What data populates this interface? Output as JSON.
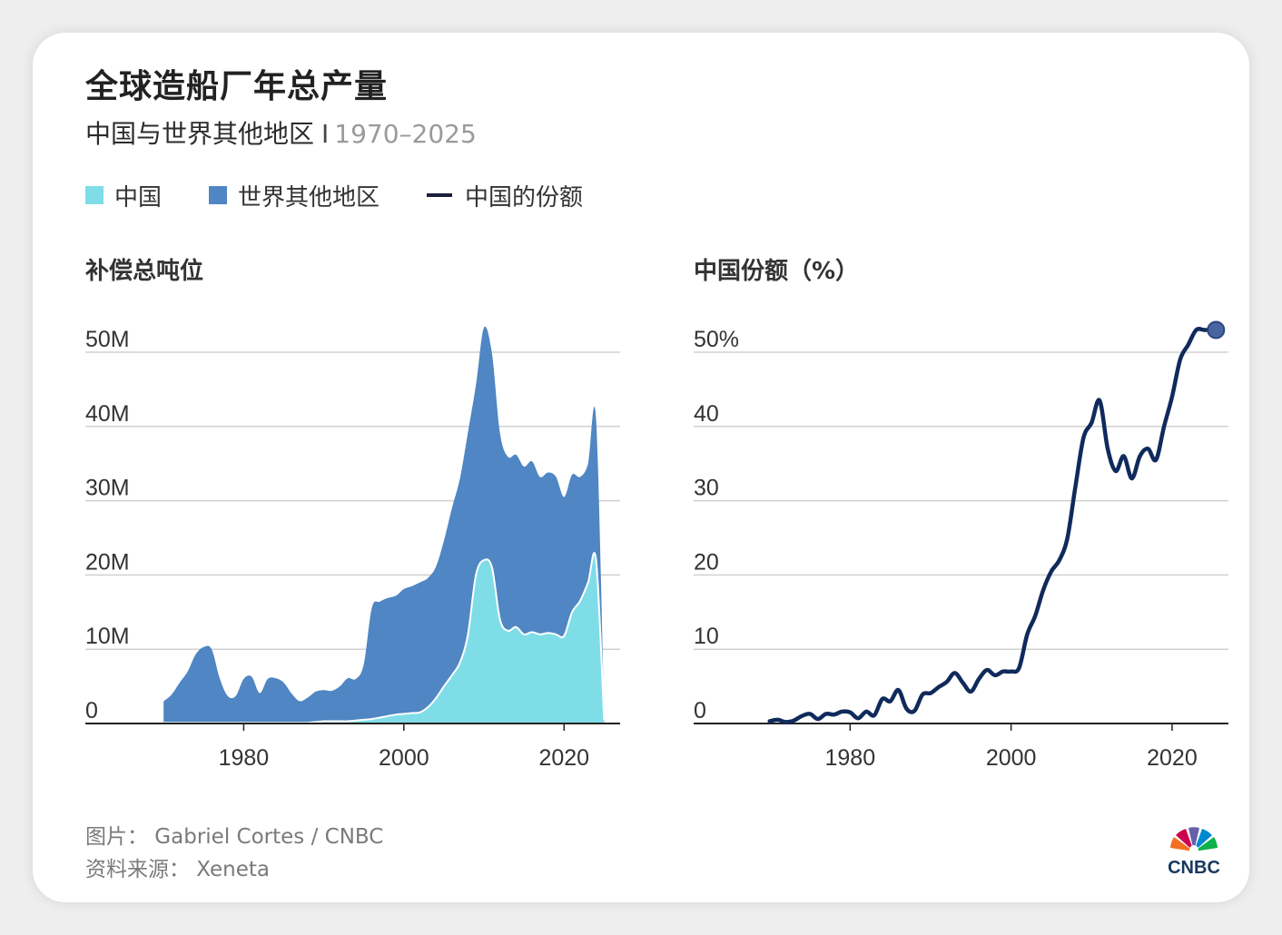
{
  "title": "全球造船厂年总产量",
  "subtitle": "中国与世界其他地区",
  "subtitle_sep": "I",
  "subtitle_range": "1970–2025",
  "legend": [
    {
      "label": "中国",
      "color": "#7fdde8"
    },
    {
      "label": "世界其他地区",
      "color": "#4f86c3"
    },
    {
      "label": "中国的份额",
      "color": "#1a1f3a"
    }
  ],
  "credit": "图片： Gabriel Cortes / CNBC",
  "source": "资料来源： Xeneta",
  "logo_text": "CNBC",
  "chart_data": [
    {
      "type": "area",
      "stacked": true,
      "title": "补偿总吨位",
      "xlim": [
        1960,
        2027
      ],
      "ylim": [
        0,
        50
      ],
      "y_unit": "M",
      "yticks": [
        0,
        10,
        20,
        30,
        40,
        50
      ],
      "ytick_labels": [
        "0",
        "10M",
        "20M",
        "30M",
        "40M",
        "50M"
      ],
      "xticks": [
        1980,
        2000,
        2020
      ],
      "xtick_labels": [
        "1980",
        "2000",
        "2020"
      ],
      "grid": true,
      "x": [
        1970,
        1971,
        1972,
        1973,
        1974,
        1975,
        1976,
        1977,
        1978,
        1979,
        1980,
        1981,
        1982,
        1983,
        1984,
        1985,
        1986,
        1987,
        1988,
        1989,
        1990,
        1991,
        1992,
        1993,
        1994,
        1995,
        1996,
        1997,
        1998,
        1999,
        2000,
        2001,
        2002,
        2003,
        2004,
        2005,
        2006,
        2007,
        2008,
        2009,
        2010,
        2011,
        2012,
        2013,
        2014,
        2015,
        2016,
        2017,
        2018,
        2019,
        2020,
        2021,
        2022,
        2023,
        2024,
        2025
      ],
      "series": [
        {
          "name": "中国",
          "color": "#7fdde8",
          "values": [
            0.1,
            0.1,
            0.1,
            0.1,
            0.1,
            0.1,
            0.1,
            0.1,
            0.1,
            0.1,
            0.1,
            0.1,
            0.1,
            0.1,
            0.1,
            0.1,
            0.1,
            0.1,
            0.1,
            0.2,
            0.3,
            0.3,
            0.3,
            0.3,
            0.4,
            0.5,
            0.6,
            0.8,
            1.0,
            1.2,
            1.3,
            1.4,
            1.5,
            2.2,
            3.4,
            5.0,
            6.5,
            8.2,
            12.0,
            20.0,
            22.0,
            21.0,
            14.0,
            12.5,
            13.0,
            12.0,
            12.3,
            12.0,
            12.2,
            12.0,
            11.8,
            15.0,
            16.5,
            19.0,
            22.0,
            0.5
          ]
        },
        {
          "name": "世界其他地区",
          "color": "#4f86c3",
          "values": [
            2.9,
            3.8,
            5.4,
            6.9,
            9.2,
            10.2,
            9.9,
            6.0,
            3.6,
            3.6,
            5.9,
            6.2,
            4.0,
            5.9,
            6.0,
            5.4,
            3.9,
            2.9,
            3.4,
            4.1,
            4.2,
            4.1,
            4.7,
            5.8,
            5.6,
            7.5,
            15.0,
            15.6,
            15.9,
            16.0,
            16.8,
            17.1,
            17.5,
            17.4,
            17.7,
            19.6,
            22.5,
            24.8,
            27.2,
            25.6,
            31.3,
            28.8,
            25.1,
            23.4,
            23.2,
            22.6,
            23.0,
            21.2,
            21.6,
            21.2,
            18.7,
            18.5,
            16.7,
            16.0,
            19.0,
            0.5
          ]
        }
      ]
    },
    {
      "type": "line",
      "title": "中国份额（%）",
      "xlim": [
        1960,
        2027
      ],
      "ylim": [
        0,
        50
      ],
      "yticks": [
        0,
        10,
        20,
        30,
        40,
        50
      ],
      "ytick_labels": [
        "0",
        "10",
        "20",
        "30",
        "40",
        "50%"
      ],
      "xticks": [
        1980,
        2000,
        2020
      ],
      "xtick_labels": [
        "1980",
        "2000",
        "2020"
      ],
      "grid": true,
      "line_color": "#102a5c",
      "end_marker": true,
      "x": [
        1970,
        1971,
        1972,
        1973,
        1974,
        1975,
        1976,
        1977,
        1978,
        1979,
        1980,
        1981,
        1982,
        1983,
        1984,
        1985,
        1986,
        1987,
        1988,
        1989,
        1990,
        1991,
        1992,
        1993,
        1994,
        1995,
        1996,
        1997,
        1998,
        1999,
        2000,
        2001,
        2002,
        2003,
        2004,
        2005,
        2006,
        2007,
        2008,
        2009,
        2010,
        2011,
        2012,
        2013,
        2014,
        2015,
        2016,
        2017,
        2018,
        2019,
        2020,
        2021,
        2022,
        2023,
        2024,
        2025
      ],
      "values": [
        0.3,
        0.5,
        0.2,
        0.4,
        1.0,
        1.3,
        0.6,
        1.3,
        1.2,
        1.6,
        1.5,
        0.7,
        1.6,
        1.1,
        3.3,
        3.0,
        4.5,
        2.0,
        1.7,
        3.9,
        4.1,
        4.9,
        5.6,
        6.8,
        5.5,
        4.3,
        6.0,
        7.2,
        6.5,
        7.0,
        7.0,
        7.5,
        12.0,
        14.5,
        18.0,
        20.5,
        22.0,
        25.0,
        32.0,
        38.5,
        40.5,
        43.5,
        37.0,
        34.0,
        36.0,
        33.0,
        36.0,
        37.0,
        35.5,
        40.0,
        44.0,
        49.0,
        51.0,
        53.0,
        53.0,
        53.0
      ]
    }
  ]
}
